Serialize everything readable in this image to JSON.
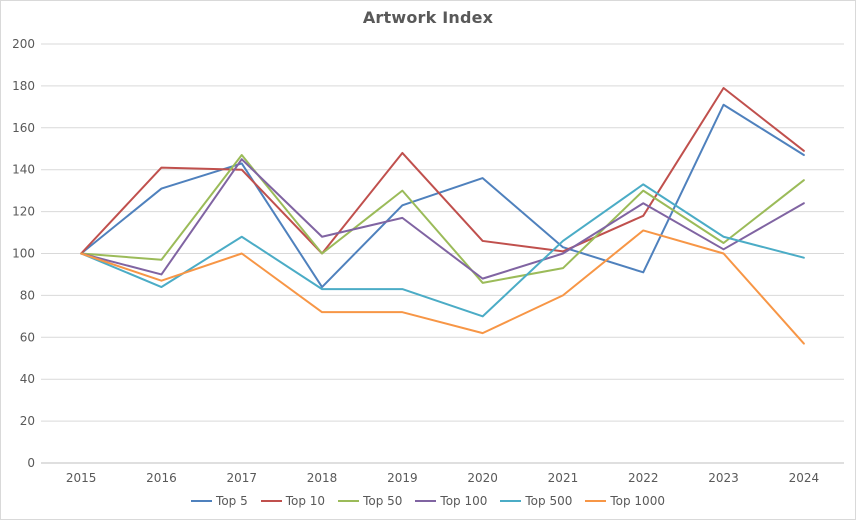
{
  "chart_data": {
    "type": "line",
    "title": "Artwork Index",
    "x": [
      "2015",
      "2016",
      "2017",
      "2018",
      "2019",
      "2020",
      "2021",
      "2022",
      "2023",
      "2024"
    ],
    "series": [
      {
        "name": "Top 5",
        "color": "#4F81BD",
        "values": [
          100,
          131,
          143,
          84,
          123,
          136,
          103,
          91,
          171,
          147
        ]
      },
      {
        "name": "Top 10",
        "color": "#C0504D",
        "values": [
          100,
          141,
          140,
          100,
          148,
          106,
          101,
          118,
          179,
          149
        ]
      },
      {
        "name": "Top 50",
        "color": "#9BBB59",
        "values": [
          100,
          97,
          147,
          100,
          130,
          86,
          93,
          130,
          105,
          135
        ]
      },
      {
        "name": "Top 100",
        "color": "#8064A2",
        "values": [
          100,
          90,
          145,
          108,
          117,
          88,
          100,
          124,
          102,
          124
        ]
      },
      {
        "name": "Top 500",
        "color": "#4BACC6",
        "values": [
          100,
          84,
          108,
          83,
          83,
          70,
          106,
          133,
          108,
          98
        ]
      },
      {
        "name": "Top 1000",
        "color": "#F79646",
        "values": [
          100,
          87,
          100,
          72,
          72,
          62,
          80,
          111,
          100,
          57
        ]
      }
    ],
    "ylim": [
      0,
      200
    ],
    "ytick_step": 20,
    "grid": true,
    "legend_position": "bottom",
    "colors": {
      "title": "#595959",
      "axis_labels": "#595959",
      "gridline": "#D9D9D9",
      "axis_line": "#BFBFBF",
      "background": "#FFFFFF",
      "frame_border": "#D9D9D9"
    }
  }
}
